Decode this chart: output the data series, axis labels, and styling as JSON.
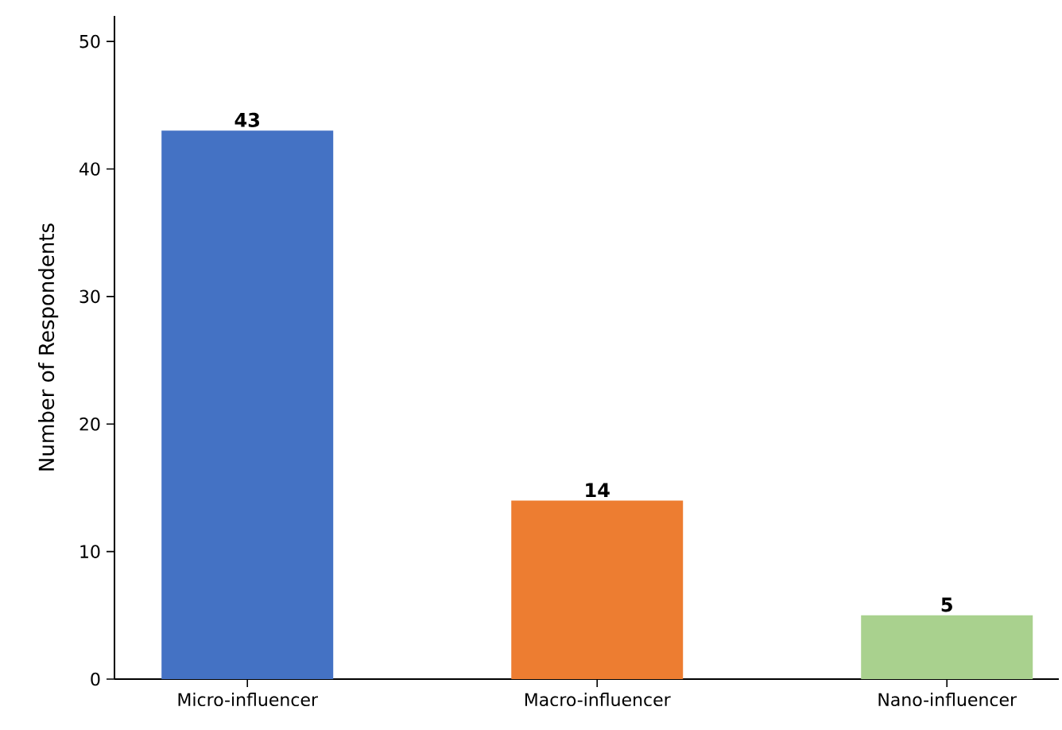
{
  "chart_data": {
    "type": "bar",
    "ylabel": "Number of Respondents",
    "categories": [
      "Micro-influencer",
      "Macro-influencer",
      "Nano-influencer"
    ],
    "values": [
      43,
      14,
      5
    ],
    "colors": [
      "#4472c4",
      "#ed7d31",
      "#a9d18e"
    ],
    "ylim": [
      0,
      52
    ],
    "yticks": [
      0,
      10,
      20,
      30,
      40,
      50
    ],
    "data_labels": true
  }
}
